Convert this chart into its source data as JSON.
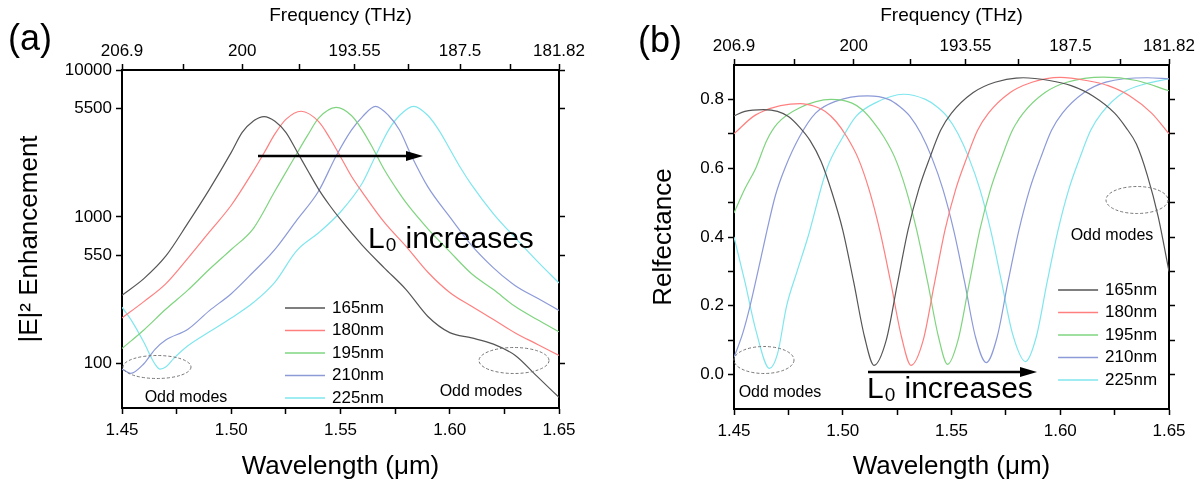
{
  "chart_data": [
    {
      "type": "line",
      "title": "(a)",
      "xlabel": "Wavelength (μm)",
      "ylabel": "|E|² Enhancement",
      "x2label": "Frequency (THz)",
      "log": "y",
      "grid": false,
      "legend": "bottom",
      "xlim": [
        1.45,
        1.65
      ],
      "xticks": [
        1.45,
        {
          "value": 1.475,
          "label": null
        },
        {
          "value": 1.5,
          "label": "1.50"
        },
        {
          "value": 1.525,
          "label": null
        },
        1.55,
        {
          "value": 1.575,
          "label": null
        },
        {
          "value": 1.6,
          "label": "1.60"
        },
        {
          "value": 1.625,
          "label": null
        },
        1.65
      ],
      "x2lim": [
        206.9,
        181.82
      ],
      "x2ticks": [
        206.9,
        {
          "value": 203.39,
          "label": null
        },
        200,
        {
          "value": 196.72,
          "label": null
        },
        193.55,
        {
          "value": 190.48,
          "label": null
        },
        187.5,
        {
          "value": 184.62,
          "label": null
        },
        181.82
      ],
      "ylim": [
        50,
        10000
      ],
      "yticks": [
        100,
        550,
        1000,
        5500,
        10000
      ],
      "annotations": [
        "L₀ increases",
        "Odd modes",
        "Odd modes"
      ],
      "series": [
        {
          "name": "165nm",
          "color": "#555555",
          "x": [
            1.45,
            1.46,
            1.47,
            1.48,
            1.49,
            1.5,
            1.505,
            1.51,
            1.515,
            1.52,
            1.525,
            1.53,
            1.535,
            1.54,
            1.545,
            1.55,
            1.56,
            1.57,
            1.58,
            1.59,
            1.6,
            1.61,
            1.62,
            1.63,
            1.64,
            1.65
          ],
          "values": [
            293,
            380,
            540,
            900,
            1540,
            2750,
            3760,
            4480,
            4820,
            4480,
            3760,
            2800,
            2070,
            1540,
            1200,
            960,
            640,
            450,
            320,
            210,
            163,
            150,
            136,
            114,
            82,
            59
          ]
        },
        {
          "name": "180nm",
          "color": "#ff7f7f",
          "x": [
            1.45,
            1.46,
            1.47,
            1.48,
            1.49,
            1.5,
            1.51,
            1.515,
            1.52,
            1.525,
            1.532,
            1.54,
            1.545,
            1.55,
            1.555,
            1.56,
            1.57,
            1.58,
            1.59,
            1.6,
            1.61,
            1.62,
            1.63,
            1.64,
            1.65
          ],
          "values": [
            205,
            265,
            350,
            520,
            790,
            1200,
            2040,
            2720,
            3670,
            4610,
            5240,
            4450,
            3460,
            2570,
            1890,
            1470,
            920,
            630,
            420,
            306,
            246,
            200,
            162,
            136,
            114
          ]
        },
        {
          "name": "195nm",
          "color": "#7fd47f",
          "x": [
            1.45,
            1.46,
            1.47,
            1.48,
            1.49,
            1.5,
            1.51,
            1.52,
            1.53,
            1.535,
            1.54,
            1.548,
            1.555,
            1.56,
            1.565,
            1.57,
            1.575,
            1.58,
            1.59,
            1.6,
            1.61,
            1.62,
            1.63,
            1.64,
            1.65
          ],
          "values": [
            127,
            170,
            235,
            316,
            440,
            600,
            830,
            1500,
            2700,
            3600,
            4700,
            5560,
            4900,
            3900,
            2900,
            2100,
            1600,
            1250,
            830,
            580,
            410,
            320,
            245,
            200,
            165
          ]
        },
        {
          "name": "210nm",
          "color": "#8c9ad8",
          "x": [
            1.45,
            1.454,
            1.46,
            1.465,
            1.47,
            1.48,
            1.49,
            1.5,
            1.51,
            1.52,
            1.53,
            1.54,
            1.548,
            1.555,
            1.56,
            1.566,
            1.572,
            1.577,
            1.5825,
            1.59,
            1.6,
            1.61,
            1.62,
            1.63,
            1.64,
            1.65
          ],
          "values": [
            92,
            86,
            100,
            125,
            145,
            171,
            230,
            300,
            420,
            600,
            950,
            1500,
            2600,
            3900,
            4800,
            5660,
            4900,
            3900,
            2600,
            1600,
            1000,
            640,
            450,
            340,
            280,
            231
          ]
        },
        {
          "name": "225nm",
          "color": "#7fe6ee",
          "x": [
            1.45,
            1.455,
            1.46,
            1.465,
            1.4674,
            1.47,
            1.4735,
            1.48,
            1.49,
            1.5,
            1.51,
            1.52,
            1.53,
            1.54,
            1.55,
            1.56,
            1.566,
            1.572,
            1.577,
            1.5835,
            1.59,
            1.595,
            1.6,
            1.605,
            1.61,
            1.62,
            1.63,
            1.64,
            1.65
          ],
          "values": [
            243,
            190,
            140,
            100,
            92,
            95,
            108,
            132,
            165,
            205,
            260,
            360,
            590,
            780,
            1080,
            1700,
            2600,
            3900,
            4900,
            5660,
            4900,
            3900,
            2900,
            2150,
            1650,
            1050,
            720,
            500,
            355
          ]
        }
      ]
    },
    {
      "type": "line",
      "title": "(b)",
      "xlabel": "Wavelength (μm)",
      "ylabel": "Relfectance",
      "x2label": "Frequency (THz)",
      "grid": false,
      "legend": "bottom right",
      "xlim": [
        1.45,
        1.65
      ],
      "xticks": [
        1.45,
        {
          "value": 1.475,
          "label": null
        },
        {
          "value": 1.5,
          "label": "1.50"
        },
        {
          "value": 1.525,
          "label": null
        },
        1.55,
        {
          "value": 1.575,
          "label": null
        },
        {
          "value": 1.6,
          "label": "1.60"
        },
        {
          "value": 1.625,
          "label": null
        },
        1.65
      ],
      "x2lim": [
        206.9,
        181.82
      ],
      "x2ticks": [
        206.9,
        {
          "value": 203.39,
          "label": null
        },
        200,
        {
          "value": 196.72,
          "label": null
        },
        193.55,
        {
          "value": 190.48,
          "label": null
        },
        187.5,
        {
          "value": 184.62,
          "label": null
        },
        181.82
      ],
      "ylim": [
        -0.1,
        0.9
      ],
      "yticks": [
        {
          "value": 0,
          "label": "0.0"
        },
        {
          "value": 0.1,
          "label": null
        },
        0.2,
        {
          "value": 0.3,
          "label": null
        },
        0.4,
        {
          "value": 0.5,
          "label": null
        },
        0.6,
        {
          "value": 0.7,
          "label": null
        },
        0.8
      ],
      "annotations": [
        "L₀ increases",
        "Odd modes",
        "Odd modes"
      ],
      "series": [
        {
          "name": "165nm",
          "color": "#555555",
          "x": [
            1.45,
            1.455,
            1.4636,
            1.47,
            1.475,
            1.48,
            1.485,
            1.49,
            1.495,
            1.5,
            1.505,
            1.51,
            1.5144,
            1.52,
            1.525,
            1.53,
            1.535,
            1.54,
            1.545,
            1.55,
            1.56,
            1.57,
            1.583,
            1.595,
            1.605,
            1.615,
            1.625,
            1.63,
            1.635,
            1.64,
            1.645,
            1.65
          ],
          "values": [
            0.752,
            0.765,
            0.77,
            0.765,
            0.75,
            0.72,
            0.68,
            0.62,
            0.53,
            0.42,
            0.27,
            0.11,
            0.027,
            0.1,
            0.26,
            0.42,
            0.54,
            0.63,
            0.71,
            0.76,
            0.82,
            0.85,
            0.863,
            0.855,
            0.84,
            0.81,
            0.76,
            0.72,
            0.67,
            0.58,
            0.46,
            0.3
          ]
        },
        {
          "name": "180nm",
          "color": "#ff7f7f",
          "x": [
            1.45,
            1.46,
            1.4806,
            1.487,
            1.492,
            1.497,
            1.502,
            1.507,
            1.512,
            1.517,
            1.522,
            1.527,
            1.5314,
            1.537,
            1.542,
            1.547,
            1.552,
            1.557,
            1.562,
            1.567,
            1.577,
            1.587,
            1.6,
            1.612,
            1.622,
            1.632,
            1.642,
            1.65
          ],
          "values": [
            0.7,
            0.755,
            0.788,
            0.78,
            0.765,
            0.735,
            0.69,
            0.63,
            0.54,
            0.42,
            0.27,
            0.11,
            0.027,
            0.1,
            0.26,
            0.42,
            0.54,
            0.63,
            0.71,
            0.76,
            0.82,
            0.85,
            0.864,
            0.855,
            0.84,
            0.81,
            0.76,
            0.7
          ]
        },
        {
          "name": "195nm",
          "color": "#7fd47f",
          "x": [
            1.45,
            1.455,
            1.46,
            1.465,
            1.47,
            1.48,
            1.4946,
            1.504,
            1.509,
            1.514,
            1.519,
            1.524,
            1.529,
            1.534,
            1.539,
            1.544,
            1.5482,
            1.553,
            1.558,
            1.563,
            1.568,
            1.573,
            1.578,
            1.583,
            1.593,
            1.603,
            1.62,
            1.635,
            1.65
          ],
          "values": [
            0.47,
            0.54,
            0.6,
            0.68,
            0.73,
            0.775,
            0.8,
            0.79,
            0.77,
            0.735,
            0.69,
            0.63,
            0.54,
            0.42,
            0.27,
            0.11,
            0.03,
            0.1,
            0.26,
            0.42,
            0.54,
            0.63,
            0.71,
            0.76,
            0.82,
            0.85,
            0.865,
            0.855,
            0.825
          ]
        },
        {
          "name": "210nm",
          "color": "#8c9ad8",
          "x": [
            1.45,
            1.454,
            1.4574,
            1.461,
            1.4645,
            1.469,
            1.4734,
            1.48,
            1.4875,
            1.497,
            1.5114,
            1.521,
            1.526,
            1.531,
            1.536,
            1.541,
            1.546,
            1.551,
            1.556,
            1.561,
            1.566,
            1.571,
            1.576,
            1.581,
            1.586,
            1.591,
            1.596,
            1.601,
            1.611,
            1.621,
            1.64,
            1.65
          ],
          "values": [
            0.05,
            0.12,
            0.2,
            0.3,
            0.4,
            0.52,
            0.6,
            0.69,
            0.76,
            0.795,
            0.81,
            0.8,
            0.78,
            0.75,
            0.7,
            0.63,
            0.54,
            0.42,
            0.27,
            0.11,
            0.035,
            0.11,
            0.27,
            0.42,
            0.54,
            0.63,
            0.71,
            0.76,
            0.82,
            0.85,
            0.863,
            0.86
          ]
        },
        {
          "name": "225nm",
          "color": "#7fe6ee",
          "x": [
            1.45,
            1.455,
            1.46,
            1.4663,
            1.47,
            1.4742,
            1.479,
            1.484,
            1.4928,
            1.5,
            1.506,
            1.515,
            1.528,
            1.538,
            1.543,
            1.548,
            1.553,
            1.558,
            1.563,
            1.568,
            1.573,
            1.578,
            1.584,
            1.589,
            1.594,
            1.599,
            1.604,
            1.609,
            1.614,
            1.619,
            1.629,
            1.639,
            1.65
          ],
          "values": [
            0.4,
            0.27,
            0.13,
            0.018,
            0.06,
            0.2,
            0.3,
            0.4,
            0.6,
            0.69,
            0.75,
            0.79,
            0.815,
            0.8,
            0.78,
            0.75,
            0.7,
            0.63,
            0.54,
            0.42,
            0.27,
            0.12,
            0.038,
            0.11,
            0.27,
            0.42,
            0.54,
            0.63,
            0.71,
            0.76,
            0.82,
            0.845,
            0.86
          ]
        }
      ]
    }
  ]
}
